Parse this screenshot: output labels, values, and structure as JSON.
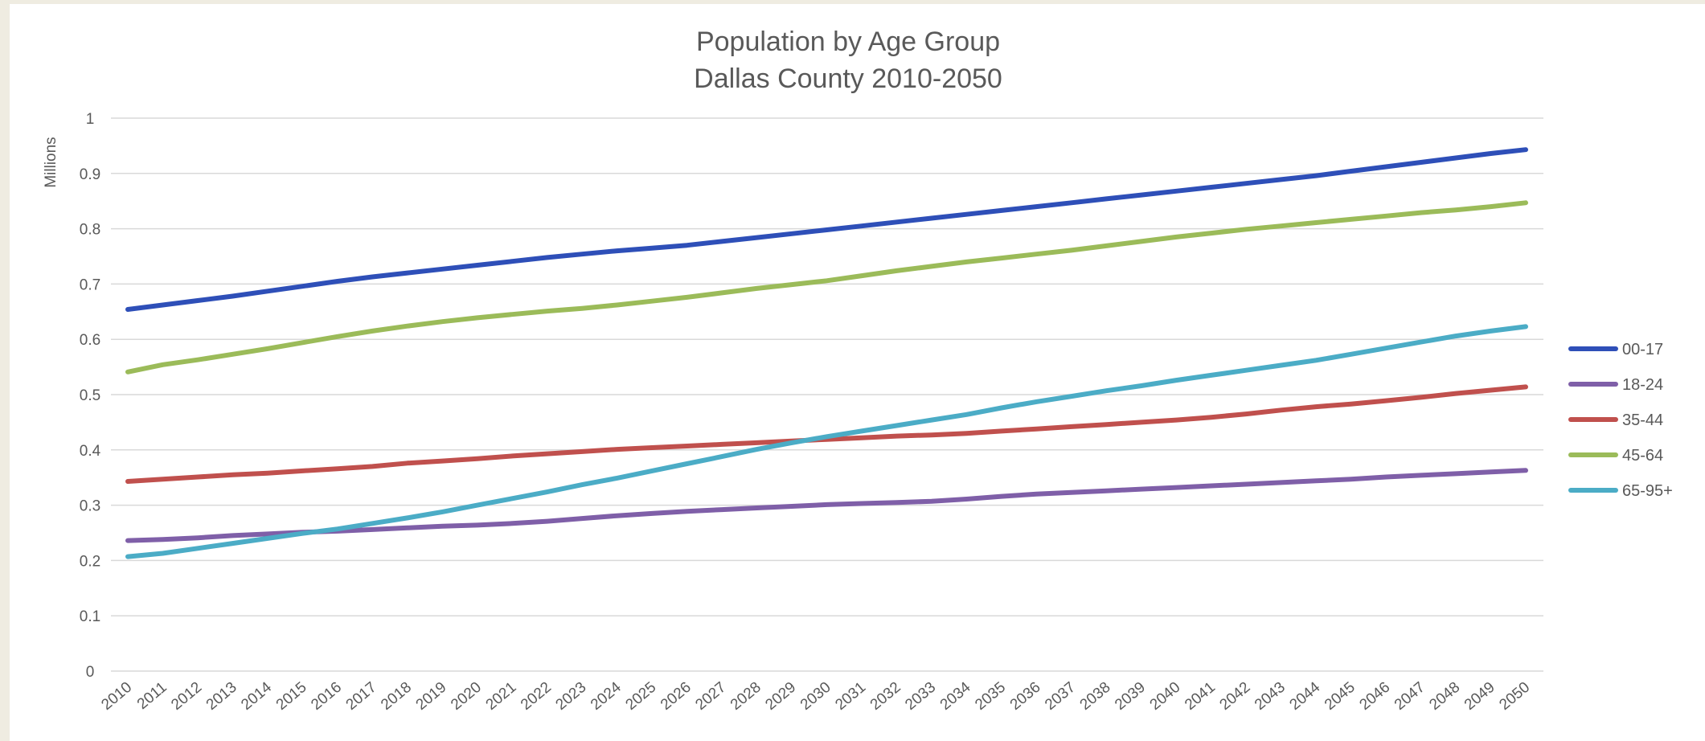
{
  "chart_data": {
    "type": "line",
    "title": "Population by Age Group",
    "subtitle": "Dallas County 2010-2050",
    "ylabel": "Millions",
    "xlabel": "",
    "ylim": [
      0,
      1
    ],
    "yticks": [
      0,
      0.1,
      0.2,
      0.3,
      0.4,
      0.5,
      0.6,
      0.7,
      0.8,
      0.9,
      1
    ],
    "ytick_labels": [
      "0",
      "0.1",
      "0.2",
      "0.3",
      "0.4",
      "0.5",
      "0.6",
      "0.7",
      "0.8",
      "0.9",
      "1"
    ],
    "grid": true,
    "legend_position": "right",
    "categories": [
      "2010",
      "2011",
      "2012",
      "2013",
      "2014",
      "2015",
      "2016",
      "2017",
      "2018",
      "2019",
      "2020",
      "2021",
      "2022",
      "2023",
      "2024",
      "2025",
      "2026",
      "2027",
      "2028",
      "2029",
      "2030",
      "2031",
      "2032",
      "2033",
      "2034",
      "2035",
      "2036",
      "2037",
      "2038",
      "2039",
      "2040",
      "2041",
      "2042",
      "2043",
      "2044",
      "2045",
      "2046",
      "2047",
      "2048",
      "2049",
      "2050"
    ],
    "series": [
      {
        "name": "00-17",
        "color": "#2e4fb8",
        "values": [
          0.654,
          0.662,
          0.67,
          0.678,
          0.687,
          0.696,
          0.705,
          0.713,
          0.72,
          0.727,
          0.734,
          0.741,
          0.748,
          0.754,
          0.76,
          0.765,
          0.77,
          0.777,
          0.784,
          0.791,
          0.798,
          0.805,
          0.812,
          0.819,
          0.826,
          0.833,
          0.84,
          0.847,
          0.854,
          0.861,
          0.868,
          0.875,
          0.882,
          0.889,
          0.896,
          0.904,
          0.912,
          0.92,
          0.928,
          0.936,
          0.943
        ]
      },
      {
        "name": "18-24",
        "color": "#7f5fa8",
        "values": [
          0.236,
          0.238,
          0.241,
          0.245,
          0.248,
          0.251,
          0.253,
          0.256,
          0.259,
          0.262,
          0.264,
          0.267,
          0.271,
          0.276,
          0.281,
          0.285,
          0.289,
          0.292,
          0.295,
          0.298,
          0.301,
          0.303,
          0.305,
          0.307,
          0.311,
          0.316,
          0.32,
          0.323,
          0.326,
          0.329,
          0.332,
          0.335,
          0.338,
          0.341,
          0.344,
          0.347,
          0.351,
          0.354,
          0.357,
          0.36,
          0.363
        ]
      },
      {
        "name": "35-44",
        "color": "#c0504d",
        "values": [
          0.343,
          0.347,
          0.351,
          0.355,
          0.358,
          0.362,
          0.366,
          0.37,
          0.376,
          0.38,
          0.384,
          0.389,
          0.393,
          0.397,
          0.401,
          0.404,
          0.407,
          0.41,
          0.413,
          0.416,
          0.419,
          0.422,
          0.425,
          0.427,
          0.43,
          0.434,
          0.438,
          0.442,
          0.446,
          0.45,
          0.454,
          0.459,
          0.465,
          0.472,
          0.478,
          0.483,
          0.489,
          0.495,
          0.502,
          0.508,
          0.514
        ]
      },
      {
        "name": "45-64",
        "color": "#9bbb59",
        "values": [
          0.541,
          0.554,
          0.563,
          0.573,
          0.583,
          0.594,
          0.605,
          0.615,
          0.624,
          0.632,
          0.639,
          0.645,
          0.651,
          0.656,
          0.662,
          0.669,
          0.676,
          0.684,
          0.692,
          0.699,
          0.706,
          0.715,
          0.724,
          0.732,
          0.74,
          0.747,
          0.754,
          0.761,
          0.769,
          0.777,
          0.785,
          0.792,
          0.799,
          0.805,
          0.811,
          0.817,
          0.823,
          0.829,
          0.834,
          0.84,
          0.847
        ]
      },
      {
        "name": "65-95+",
        "color": "#4bacc6",
        "values": [
          0.207,
          0.213,
          0.222,
          0.231,
          0.24,
          0.249,
          0.257,
          0.267,
          0.277,
          0.288,
          0.3,
          0.312,
          0.324,
          0.337,
          0.349,
          0.362,
          0.375,
          0.388,
          0.401,
          0.413,
          0.424,
          0.434,
          0.444,
          0.454,
          0.464,
          0.476,
          0.487,
          0.497,
          0.507,
          0.516,
          0.526,
          0.535,
          0.544,
          0.553,
          0.562,
          0.573,
          0.584,
          0.595,
          0.606,
          0.615,
          0.623
        ]
      }
    ]
  }
}
